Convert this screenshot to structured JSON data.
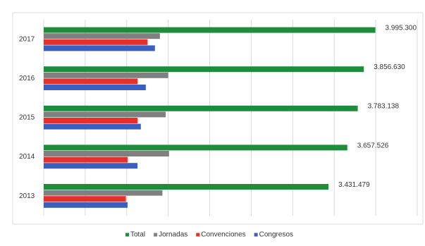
{
  "chart_data": {
    "type": "bar",
    "orientation": "horizontal",
    "categories": [
      "2017",
      "2016",
      "2015",
      "2014",
      "2013"
    ],
    "series": [
      {
        "name": "Total",
        "color": "#1e8c3a",
        "values": [
          3995300,
          3856630,
          3783138,
          3657526,
          3431479
        ],
        "value_labels": [
          "3.995.300",
          "3.856.630",
          "3.783.138",
          "3.657.526",
          "3.431.479"
        ]
      },
      {
        "name": "Jornadas",
        "color": "#808080",
        "values": [
          1400000,
          1500000,
          1470000,
          1510000,
          1430000
        ]
      },
      {
        "name": "Convenciones",
        "color": "#e8302a",
        "values": [
          1250000,
          1130000,
          1130000,
          1010000,
          990000
        ]
      },
      {
        "name": "Congresos",
        "color": "#3b5fc0",
        "values": [
          1340000,
          1230000,
          1170000,
          1130000,
          1010000
        ]
      }
    ],
    "xlim": [
      0,
      4500000
    ],
    "xticks": [
      0,
      500000,
      1000000,
      1500000,
      2000000,
      2500000,
      3000000,
      3500000,
      4000000,
      4500000
    ],
    "grid": true,
    "legend": "bottom"
  }
}
